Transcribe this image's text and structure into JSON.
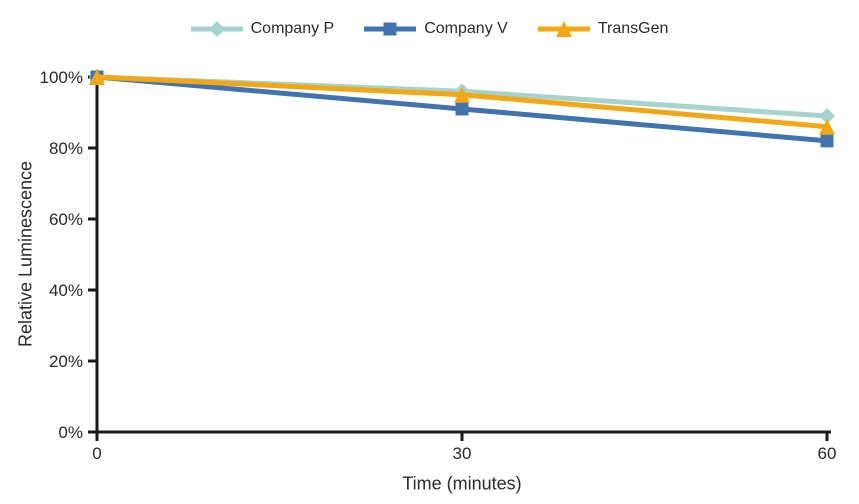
{
  "chart_data": {
    "type": "line",
    "x": [
      0,
      30,
      60
    ],
    "xlim": [
      0,
      60
    ],
    "ylim": [
      0,
      100
    ],
    "xlabel": "Time (minutes)",
    "ylabel": "Relative Luminescence",
    "xticks": [
      {
        "value": 0,
        "label": "0"
      },
      {
        "value": 30,
        "label": "30"
      },
      {
        "value": 60,
        "label": "60"
      }
    ],
    "yticks": [
      {
        "value": 0,
        "label": "0%"
      },
      {
        "value": 20,
        "label": "20%"
      },
      {
        "value": 40,
        "label": "40%"
      },
      {
        "value": 60,
        "label": "60%"
      },
      {
        "value": 80,
        "label": "80%"
      },
      {
        "value": 100,
        "label": "100%"
      }
    ],
    "grid": false,
    "legend_position": "top-center",
    "series": [
      {
        "name": "Company P",
        "color": "#A6D3CD",
        "marker": "diamond",
        "values": [
          100,
          96,
          89
        ]
      },
      {
        "name": "Company V",
        "color": "#4173AE",
        "marker": "square",
        "values": [
          100,
          91,
          82
        ]
      },
      {
        "name": "TransGen",
        "color": "#F3A712",
        "marker": "triangle",
        "values": [
          100,
          95,
          86
        ]
      }
    ],
    "axis_color": "#1A1A1A",
    "text_color": "#2B2B2B",
    "background": "#FFFFFF"
  }
}
